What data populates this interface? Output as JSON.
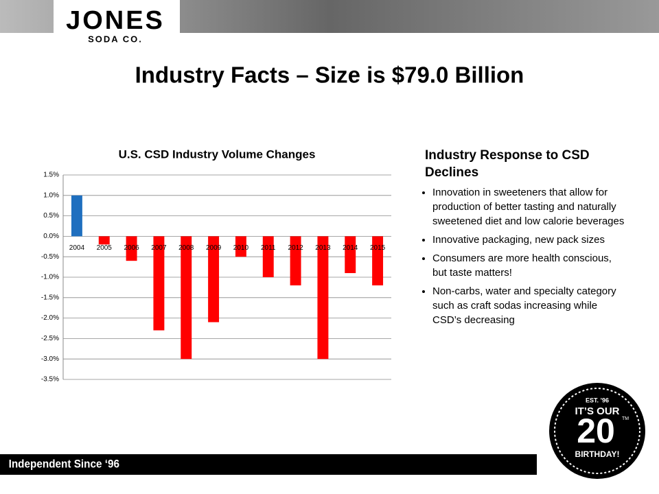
{
  "header": {
    "logo": "JONES",
    "logo_sub": "SODA CO."
  },
  "title": "Industry Facts – Size is $79.0 Billion",
  "chart_data": {
    "type": "bar",
    "title": "U.S. CSD Industry Volume Changes",
    "categories": [
      "2004",
      "2005",
      "2006",
      "2007",
      "2008",
      "2009",
      "2010",
      "2011",
      "2012",
      "2013",
      "2014",
      "2015"
    ],
    "values": [
      1.0,
      -0.2,
      -0.6,
      -2.3,
      -3.0,
      -2.1,
      -0.5,
      -1.0,
      -1.2,
      -3.0,
      -0.9,
      -1.2
    ],
    "colors": [
      "#1f6fbf",
      "#ff0000",
      "#ff0000",
      "#ff0000",
      "#ff0000",
      "#ff0000",
      "#ff0000",
      "#ff0000",
      "#ff0000",
      "#ff0000",
      "#ff0000",
      "#ff0000"
    ],
    "ylim": [
      -3.5,
      1.5
    ],
    "yticks": [
      {
        "value": 1.5,
        "label": "1.5%"
      },
      {
        "value": 1.0,
        "label": "1.0%"
      },
      {
        "value": 0.5,
        "label": "0.5%"
      },
      {
        "value": 0,
        "label": "0.0%"
      },
      {
        "value": -0.5,
        "label": "-0.5%"
      },
      {
        "value": -1.0,
        "label": "-1.0%"
      },
      {
        "value": -1.5,
        "label": "-1.5%"
      },
      {
        "value": -2.0,
        "label": "-2.0%"
      },
      {
        "value": -2.5,
        "label": "-2.5%"
      },
      {
        "value": -3.0,
        "label": "-3.0%"
      },
      {
        "value": -3.5,
        "label": "-3.5%"
      }
    ],
    "grid": true
  },
  "side": {
    "heading": "Industry Response to CSD Declines",
    "bullets": [
      "Innovation in sweeteners that allow for production of better tasting and naturally sweetened diet and low calorie beverages",
      "Innovative packaging, new pack sizes",
      "Consumers are more health conscious, but taste matters!",
      "Non-carbs, water and specialty category such as craft sodas increasing while CSD’s decreasing"
    ]
  },
  "footer": "Independent Since ‘96",
  "badge": {
    "est": "EST. ’96",
    "line1": "IT’S OUR",
    "number": "20",
    "tm": "TM",
    "line2": "BIRTHDAY!"
  }
}
